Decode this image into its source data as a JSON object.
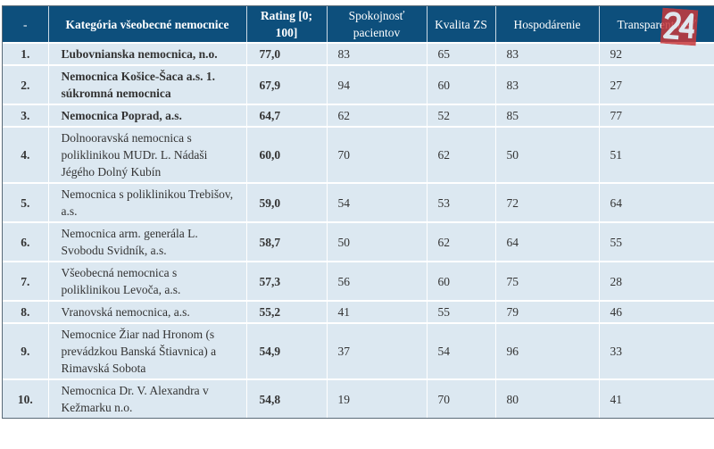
{
  "headers": [
    "-",
    "Kategória všeobecné nemocnice",
    "Rating [0; 100]",
    "Spokojnosť pacientov",
    "Kvalita ZS",
    "Hospodárenie",
    "Transparentnosť"
  ],
  "logo": "24",
  "rows": [
    {
      "rank": "1.",
      "name": "Ľubovnianska nemocnica, n.o.",
      "rating": "77,0",
      "spok": "83",
      "kval": "65",
      "hosp": "83",
      "trans": "92",
      "bold": true
    },
    {
      "rank": "2.",
      "name": "Nemocnica Košice-Šaca a.s. 1. súkromná nemocnica",
      "rating": "67,9",
      "spok": "94",
      "kval": "60",
      "hosp": "83",
      "trans": "27",
      "bold": true
    },
    {
      "rank": "3.",
      "name": "Nemocnica Poprad, a.s.",
      "rating": "64,7",
      "spok": "62",
      "kval": "52",
      "hosp": "85",
      "trans": "77",
      "bold": true
    },
    {
      "rank": "4.",
      "name": "Dolnooravská nemocnica s poliklinikou MUDr. L. Nádaši Jégého Dolný Kubín",
      "rating": "60,0",
      "spok": "70",
      "kval": "62",
      "hosp": "50",
      "trans": "51",
      "bold": false
    },
    {
      "rank": "5.",
      "name": "Nemocnica s poliklinikou Trebišov, a.s.",
      "rating": "59,0",
      "spok": "54",
      "kval": "53",
      "hosp": "72",
      "trans": "64",
      "bold": false
    },
    {
      "rank": "6.",
      "name": "Nemocnica arm. generála L. Svobodu Svidník, a.s.",
      "rating": "58,7",
      "spok": "50",
      "kval": "62",
      "hosp": "64",
      "trans": "55",
      "bold": false
    },
    {
      "rank": "7.",
      "name": "Všeobecná nemocnica s poliklinikou Levoča, a.s.",
      "rating": "57,3",
      "spok": "56",
      "kval": "60",
      "hosp": "75",
      "trans": "28",
      "bold": false
    },
    {
      "rank": "8.",
      "name": "Vranovská nemocnica, a.s.",
      "rating": "55,2",
      "spok": "41",
      "kval": "55",
      "hosp": "79",
      "trans": "46",
      "bold": false
    },
    {
      "rank": "9.",
      "name": "Nemocnice Žiar nad Hronom (s prevádzkou Banská Štiavnica) a Rimavská Sobota",
      "rating": "54,9",
      "spok": "37",
      "kval": "54",
      "hosp": "96",
      "trans": "33",
      "bold": false
    },
    {
      "rank": "10.",
      "name": "Nemocnica Dr. V. Alexandra v Kežmarku n.o.",
      "rating": "54,8",
      "spok": "19",
      "kval": "70",
      "hosp": "80",
      "trans": "41",
      "bold": false
    }
  ]
}
